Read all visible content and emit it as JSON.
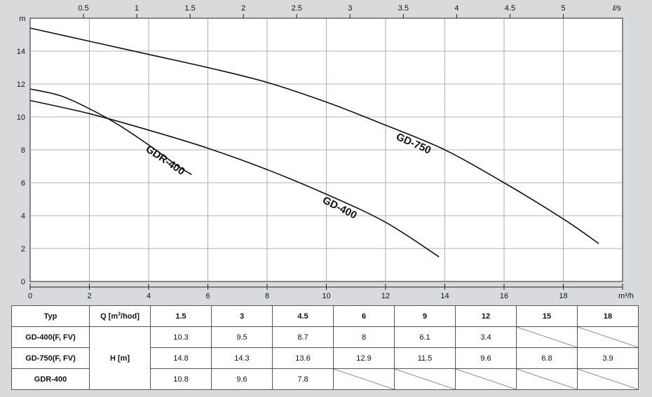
{
  "chart_data": {
    "type": "line",
    "x_unit_top": "ℓ/s",
    "x_unit_bottom": "m³/h",
    "y_unit": "m",
    "xlim": [
      0,
      20
    ],
    "ylim": [
      0,
      16
    ],
    "x_ticks": [
      0,
      2,
      4,
      6,
      8,
      10,
      12,
      14,
      16,
      18
    ],
    "y_ticks": [
      0,
      2,
      4,
      6,
      8,
      10,
      12,
      14
    ],
    "top_ticks": [
      "0.5",
      "1",
      "1.5",
      "2",
      "2.5",
      "3",
      "3.5",
      "4",
      "4.5",
      "5"
    ],
    "grid": true,
    "series": [
      {
        "name": "GD-750",
        "points": [
          [
            0,
            15.4
          ],
          [
            2,
            14.6
          ],
          [
            4,
            13.8
          ],
          [
            6,
            13.0
          ],
          [
            8,
            12.1
          ],
          [
            10,
            10.9
          ],
          [
            12,
            9.5
          ],
          [
            14,
            8.0
          ],
          [
            16,
            6.0
          ],
          [
            18,
            3.8
          ],
          [
            19.2,
            2.3
          ]
        ],
        "label_at": [
          12.9,
          8.2
        ],
        "label_rot": 24
      },
      {
        "name": "GD-400",
        "points": [
          [
            0,
            11.0
          ],
          [
            2,
            10.2
          ],
          [
            4,
            9.2
          ],
          [
            6,
            8.1
          ],
          [
            8,
            6.8
          ],
          [
            10,
            5.3
          ],
          [
            12,
            3.6
          ],
          [
            13.8,
            1.5
          ]
        ],
        "label_at": [
          10.4,
          4.3
        ],
        "label_rot": 27
      },
      {
        "name": "GDR-400",
        "points": [
          [
            0,
            11.7
          ],
          [
            1,
            11.3
          ],
          [
            2,
            10.5
          ],
          [
            3,
            9.5
          ],
          [
            4,
            8.3
          ],
          [
            5,
            7.0
          ],
          [
            5.45,
            6.5
          ]
        ],
        "label_at": [
          4.5,
          7.2
        ],
        "label_rot": 34
      }
    ]
  },
  "table": {
    "col_typ": "Typ",
    "col_q": "Q [m",
    "col_q_sup": "3",
    "col_q_tail": "/hod]",
    "h_label": "H [m]",
    "q_values": [
      "1.5",
      "3",
      "4.5",
      "6",
      "9",
      "12",
      "15",
      "18"
    ],
    "rows": [
      {
        "name": "GD-400(F, FV)",
        "values": [
          "10.3",
          "9.5",
          "8.7",
          "8",
          "6.1",
          "3.4",
          null,
          null
        ]
      },
      {
        "name": "GD-750(F, FV)",
        "values": [
          "14.8",
          "14.3",
          "13.6",
          "12.9",
          "11.5",
          "9.6",
          "6.8",
          "3.9"
        ]
      },
      {
        "name": "GDR-400",
        "values": [
          "10.8",
          "9.6",
          "7.8",
          null,
          null,
          null,
          null,
          null
        ]
      }
    ]
  }
}
